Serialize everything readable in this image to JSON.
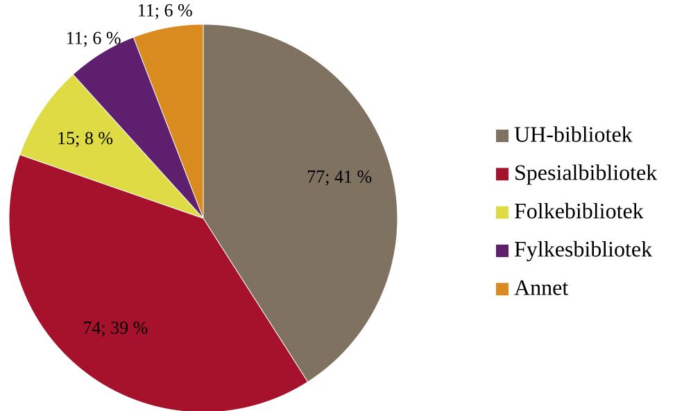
{
  "chart_data": {
    "type": "pie",
    "categories": [
      "UH-bibliotek",
      "Spesialbibliotek",
      "Folkebibliotek",
      "Fylkesbibliotek",
      "Annet"
    ],
    "values": [
      77,
      74,
      15,
      11,
      11
    ],
    "value_labels": [
      "77; 41 %",
      "74; 39 %",
      "15; 8 %",
      "11; 6 %",
      "11; 6 %"
    ],
    "colors": [
      "#7f7260",
      "#a6122b",
      "#dfdb45",
      "#5e1f6e",
      "#d98b1f"
    ],
    "legend": "right"
  }
}
